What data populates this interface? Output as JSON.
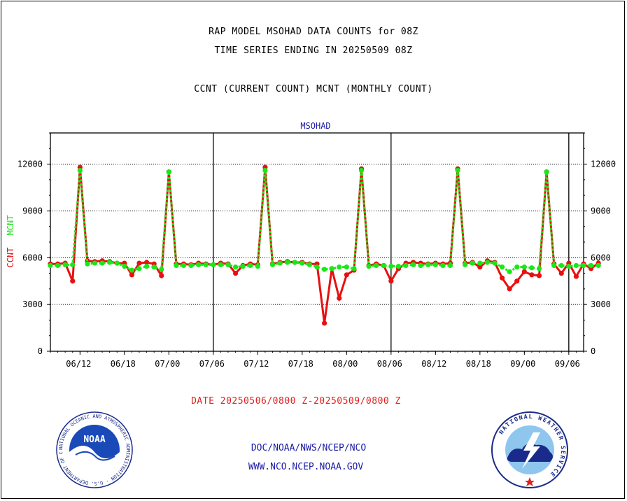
{
  "header": {
    "title_line1": "RAP MODEL MSOHAD DATA COUNTS for 08Z",
    "title_line2": "TIME SERIES ENDING IN 20250509 08Z",
    "subtitle": "CCNT (CURRENT COUNT) MCNT (MONTHLY COUNT)"
  },
  "footer": {
    "date_range": "DATE 20250506/0800 Z-20250509/0800 Z",
    "org_line": "DOC/NOAA/NWS/NCEP/NCO",
    "url_line": "WWW.NCO.NCEP.NOAA.GOV",
    "noaa_logo_text": "NOAA",
    "noaa_ring_text": "NATIONAL OCEANIC AND ATMOSPHERIC ADMINISTRATION · U.S. DEPARTMENT OF COMMERCE",
    "nws_ring_text": "NATIONAL WEATHER SERVICE"
  },
  "colors": {
    "ccnt": "#e81010",
    "mcnt": "#18e818",
    "panel_title": "#1a1aa6",
    "axis": "#000000"
  },
  "chart_data": {
    "type": "line",
    "title": "MSOHAD",
    "ylabel_parts": [
      "CCNT",
      "MCNT"
    ],
    "ylim": [
      0,
      14000
    ],
    "yticks": [
      0,
      3000,
      6000,
      9000,
      12000
    ],
    "ytick_labels": [
      "0",
      "3000",
      "6000",
      "9000",
      "12000"
    ],
    "xlim": [
      0,
      72
    ],
    "xticks": [
      4,
      10,
      16,
      22,
      28,
      34,
      40,
      46,
      52,
      58,
      64,
      70
    ],
    "xtick_labels": [
      "06/12",
      "06/18",
      "07/00",
      "07/06",
      "07/12",
      "07/18",
      "08/00",
      "08/06",
      "08/12",
      "08/18",
      "09/00",
      "09/06"
    ],
    "day_boundaries": [
      22,
      46,
      70
    ],
    "grid": "horizontal dotted",
    "series": [
      {
        "name": "CCNT",
        "values": [
          5600,
          5600,
          5650,
          4500,
          11800,
          5800,
          5750,
          5800,
          5750,
          5650,
          5650,
          4900,
          5650,
          5700,
          5600,
          4850,
          11500,
          5600,
          5600,
          5550,
          5650,
          5600,
          5550,
          5650,
          5600,
          5000,
          5500,
          5600,
          5550,
          11800,
          5600,
          5700,
          5750,
          5700,
          5700,
          5600,
          5600,
          1800,
          5300,
          3400,
          4900,
          5200,
          11700,
          5500,
          5600,
          5500,
          4500,
          5300,
          5650,
          5700,
          5650,
          5600,
          5650,
          5600,
          5650,
          11700,
          5650,
          5700,
          5400,
          5800,
          5700,
          4700,
          4000,
          4500,
          5100,
          4900,
          4850,
          11500,
          5600,
          5000,
          5650,
          4800,
          5600,
          5300,
          5650
        ]
      },
      {
        "name": "MCNT",
        "values": [
          5500,
          5500,
          5550,
          5550,
          11600,
          5600,
          5650,
          5650,
          5700,
          5650,
          5450,
          5200,
          5300,
          5450,
          5400,
          5250,
          11500,
          5500,
          5500,
          5500,
          5550,
          5550,
          5550,
          5550,
          5550,
          5400,
          5450,
          5500,
          5450,
          11600,
          5550,
          5650,
          5700,
          5700,
          5650,
          5550,
          5400,
          5250,
          5300,
          5400,
          5400,
          5300,
          11600,
          5450,
          5500,
          5500,
          5450,
          5450,
          5500,
          5550,
          5500,
          5550,
          5550,
          5500,
          5500,
          11600,
          5550,
          5650,
          5650,
          5700,
          5650,
          5400,
          5100,
          5400,
          5400,
          5350,
          5300,
          11500,
          5500,
          5500,
          5450,
          5500,
          5500,
          5500,
          5500
        ]
      }
    ]
  }
}
